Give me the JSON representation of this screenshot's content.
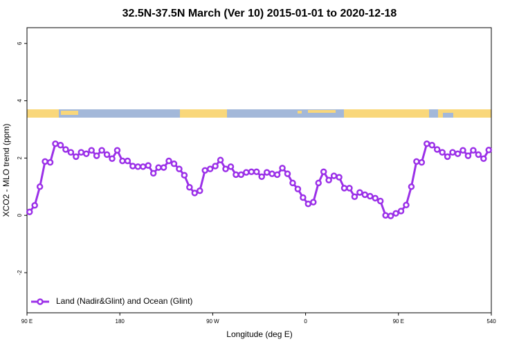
{
  "chart_data": {
    "type": "line",
    "title": "32.5N-37.5N March (Ver 10)   2015-01-01 to 2020-12-18",
    "x_label": "Longitude (deg E)",
    "y_label": "XCO2 - MLO trend (ppm)",
    "xlim": [
      90,
      540
    ],
    "ylim": [
      -3.4,
      6.55
    ],
    "xticks": [
      {
        "value": 90,
        "label": "90 E"
      },
      180,
      {
        "value": 270,
        "label": "90 W"
      },
      {
        "value": 360,
        "label": "0"
      },
      {
        "value": 450,
        "label": "90 E"
      },
      540
    ],
    "yticks": [
      -2,
      0,
      2,
      4,
      6
    ],
    "legend": "bottomleft",
    "x": [
      92.5,
      97.5,
      102.5,
      107.5,
      112.5,
      117.5,
      122.5,
      127.5,
      132.5,
      137.5,
      142.5,
      147.5,
      152.5,
      157.5,
      162.5,
      167.5,
      172.5,
      177.5,
      182.5,
      187.5,
      192.5,
      197.5,
      202.5,
      207.5,
      212.5,
      217.5,
      222.5,
      227.5,
      232.5,
      237.5,
      242.5,
      247.5,
      252.5,
      257.5,
      262.5,
      267.5,
      272.5,
      277.5,
      282.5,
      287.5,
      292.5,
      297.5,
      302.5,
      307.5,
      312.5,
      317.5,
      322.5,
      327.5,
      332.5,
      337.5,
      342.5,
      347.5,
      352.5,
      357.5,
      362.5,
      367.5,
      372.5,
      377.5,
      382.5,
      387.5,
      392.5,
      397.5,
      402.5,
      407.5,
      412.5,
      417.5,
      422.5,
      427.5,
      432.5,
      437.5,
      442.5,
      447.5,
      452.5,
      457.5,
      462.5,
      467.5,
      472.5,
      477.5,
      482.5,
      487.5,
      492.5,
      497.5,
      502.5,
      507.5,
      512.5,
      517.5,
      522.5,
      527.5,
      532.5,
      537.5
    ],
    "series": [
      {
        "name": "Land (Nadir&Glint) and Ocean (Glint)",
        "color": "#9b30e8",
        "values": [
          0.12,
          0.35,
          1.0,
          1.88,
          1.85,
          2.5,
          2.45,
          2.3,
          2.2,
          2.05,
          2.2,
          2.15,
          2.27,
          2.08,
          2.27,
          2.12,
          1.98,
          2.27,
          1.9,
          1.9,
          1.72,
          1.7,
          1.7,
          1.74,
          1.47,
          1.67,
          1.67,
          1.9,
          1.8,
          1.62,
          1.4,
          0.98,
          0.78,
          0.86,
          1.57,
          1.62,
          1.72,
          1.93,
          1.62,
          1.7,
          1.42,
          1.42,
          1.5,
          1.52,
          1.52,
          1.35,
          1.5,
          1.45,
          1.42,
          1.65,
          1.45,
          1.13,
          0.92,
          0.62,
          0.4,
          0.46,
          1.13,
          1.52,
          1.23,
          1.38,
          1.33,
          0.95,
          0.95,
          0.65,
          0.8,
          0.72,
          0.67,
          0.6,
          0.5,
          0.0,
          -0.02,
          0.07,
          0.15,
          0.36,
          1.0,
          1.88,
          1.85,
          2.5,
          2.45,
          2.3,
          2.2,
          2.05,
          2.2,
          2.15,
          2.27,
          2.08,
          2.27,
          2.12,
          1.98,
          2.28
        ]
      }
    ]
  }
}
